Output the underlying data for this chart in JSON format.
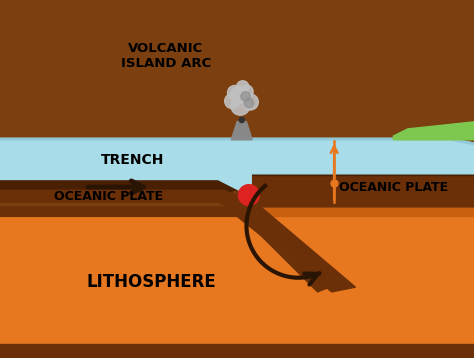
{
  "bg_color": "#7B3F10",
  "ocean_color": "#A8DCE8",
  "ocean_edge_color": "#90C8D8",
  "lithosphere_orange": "#E87820",
  "lithosphere_strip": "#C86010",
  "plate_brown": "#6B3008",
  "plate_dark": "#4A2005",
  "green_color": "#7EC850",
  "arrow_dark": "#2A1505",
  "magma_red": "#DD2222",
  "orange_line": "#E87820",
  "smoke_light": "#C0C0C0",
  "smoke_dark": "#909090",
  "labels": {
    "trench": "TRENCH",
    "volcanic": "VOLCANIC\nISLAND ARC",
    "oceanic_left": "OCEANIC PLATE",
    "oceanic_right": "OCEANIC PLATE",
    "lithosphere": "LITHOSPHERE"
  }
}
